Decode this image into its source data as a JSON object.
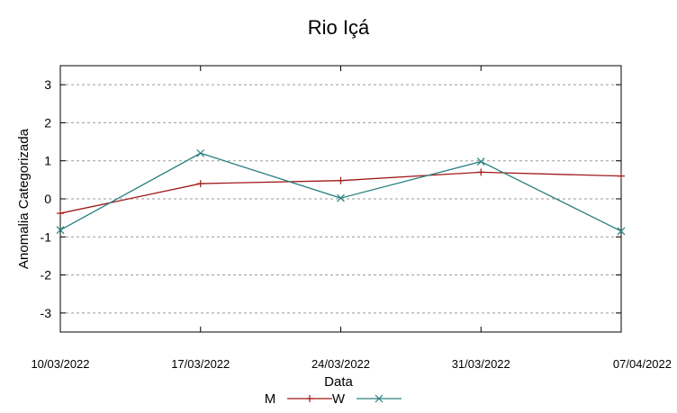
{
  "chart_data": {
    "type": "line",
    "title": "Rio Içá",
    "xlabel": "Data",
    "ylabel": "Anomalia Categorizada",
    "categories": [
      "10/03/2022",
      "17/03/2022",
      "24/03/2022",
      "31/03/2022",
      "07/04/2022"
    ],
    "ylim": [
      -3.5,
      3.5
    ],
    "yticks": [
      -3,
      -2,
      -1,
      0,
      1,
      2,
      3
    ],
    "grid": true,
    "legend_position": "bottom",
    "series": [
      {
        "name": "M",
        "marker": "plus",
        "color": "#a01818",
        "values": [
          -0.38,
          0.4,
          0.48,
          0.7,
          0.6
        ]
      },
      {
        "name": "W",
        "marker": "x",
        "color": "#2a8080",
        "values": [
          -0.82,
          1.2,
          0.02,
          0.98,
          -0.85
        ]
      }
    ]
  }
}
